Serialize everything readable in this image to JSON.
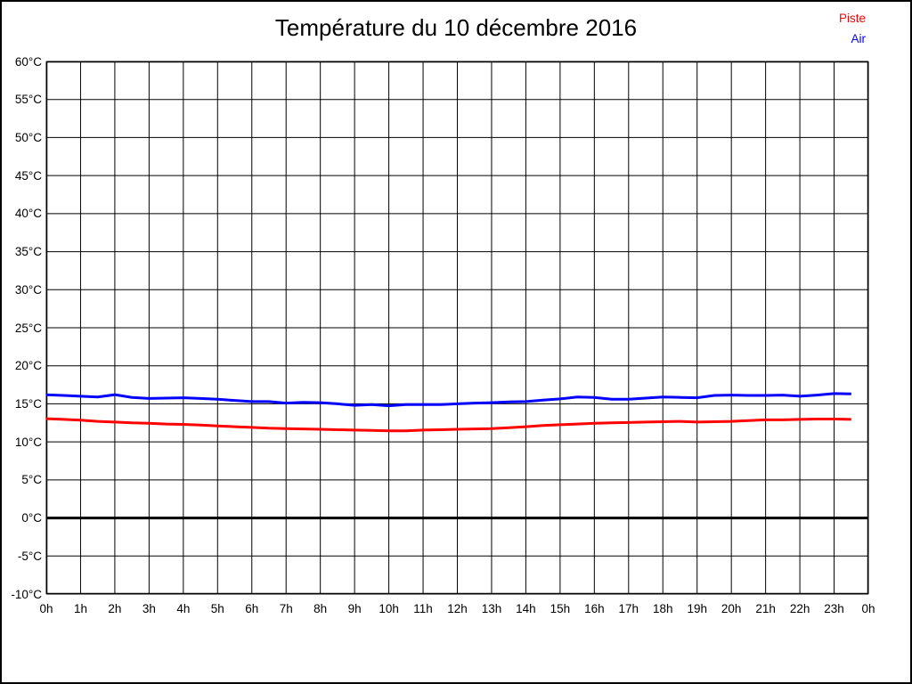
{
  "chart_data": {
    "type": "line",
    "title": "Température du 10 décembre 2016",
    "xlabel": "",
    "ylabel": "",
    "x_unit": "h",
    "y_unit": "°C",
    "xlim": [
      0,
      24
    ],
    "ylim": [
      -10,
      60
    ],
    "grid": true,
    "grid_color": "#000000",
    "background_color": "#ffffff",
    "legend_position": "top-right",
    "zero_line": {
      "value": 0,
      "color": "#000000",
      "width": 3
    },
    "xtick_values": [
      0,
      1,
      2,
      3,
      4,
      5,
      6,
      7,
      8,
      9,
      10,
      11,
      12,
      13,
      14,
      15,
      16,
      17,
      18,
      19,
      20,
      21,
      22,
      23,
      24
    ],
    "xtick_labels": [
      "0h",
      "1h",
      "2h",
      "3h",
      "4h",
      "5h",
      "6h",
      "7h",
      "8h",
      "9h",
      "10h",
      "11h",
      "12h",
      "13h",
      "14h",
      "15h",
      "16h",
      "17h",
      "18h",
      "19h",
      "20h",
      "21h",
      "22h",
      "23h",
      "0h"
    ],
    "ytick_values": [
      60,
      55,
      50,
      45,
      40,
      35,
      30,
      25,
      20,
      15,
      10,
      5,
      0,
      -5,
      -10
    ],
    "ytick_labels": [
      "60°C",
      "55°C",
      "50°C",
      "45°C",
      "40°C",
      "35°C",
      "30°C",
      "25°C",
      "20°C",
      "15°C",
      "10°C",
      "5°C",
      "0°C",
      "-5°C",
      "-10°C"
    ],
    "x": [
      0,
      0.5,
      1,
      1.5,
      2,
      2.5,
      3,
      3.5,
      4,
      4.5,
      5,
      5.5,
      6,
      6.5,
      7,
      7.5,
      8,
      8.5,
      9,
      9.5,
      10,
      10.5,
      11,
      11.5,
      12,
      12.5,
      13,
      13.5,
      14,
      14.5,
      15,
      15.5,
      16,
      16.5,
      17,
      17.5,
      18,
      18.5,
      19,
      19.5,
      20,
      20.5,
      21,
      21.5,
      22,
      22.5,
      23,
      23.5
    ],
    "series": [
      {
        "name": "Piste",
        "color": "#ff0000",
        "values": [
          13.05,
          12.95,
          12.85,
          12.7,
          12.6,
          12.5,
          12.45,
          12.35,
          12.3,
          12.2,
          12.1,
          12.0,
          11.9,
          11.8,
          11.75,
          11.7,
          11.65,
          11.6,
          11.55,
          11.5,
          11.45,
          11.45,
          11.55,
          11.6,
          11.65,
          11.7,
          11.75,
          11.85,
          12.0,
          12.15,
          12.25,
          12.35,
          12.45,
          12.5,
          12.55,
          12.6,
          12.65,
          12.7,
          12.6,
          12.65,
          12.7,
          12.8,
          12.9,
          12.9,
          12.95,
          13.0,
          13.0,
          12.95
        ]
      },
      {
        "name": "Air",
        "color": "#0000ff",
        "values": [
          16.2,
          16.1,
          16.0,
          15.9,
          16.2,
          15.85,
          15.7,
          15.75,
          15.8,
          15.7,
          15.6,
          15.45,
          15.3,
          15.3,
          15.1,
          15.2,
          15.15,
          15.0,
          14.8,
          14.9,
          14.75,
          14.9,
          14.9,
          14.9,
          15.0,
          15.1,
          15.15,
          15.25,
          15.3,
          15.5,
          15.65,
          15.9,
          15.85,
          15.6,
          15.6,
          15.75,
          15.9,
          15.85,
          15.8,
          16.1,
          16.15,
          16.1,
          16.1,
          16.15,
          16.0,
          16.15,
          16.35,
          16.3
        ]
      }
    ]
  }
}
